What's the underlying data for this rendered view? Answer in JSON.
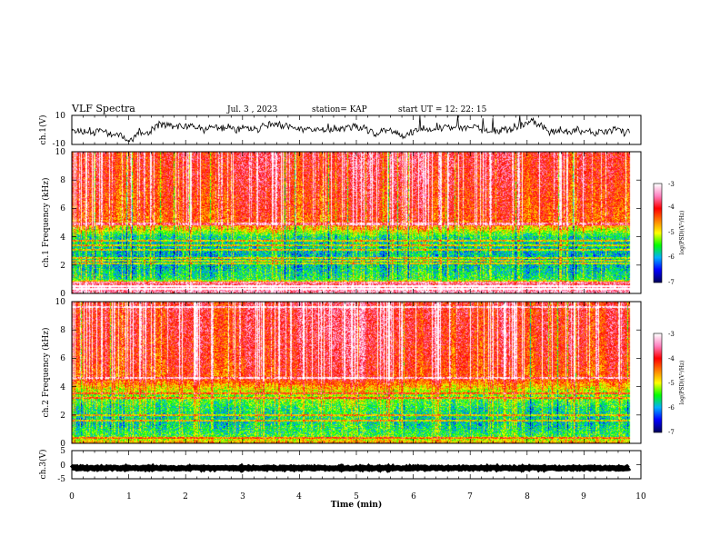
{
  "header": {
    "title": "VLF Spectra",
    "date": "Jul. 3 , 2023",
    "station": "station= KAP",
    "start": "start UT = 12: 22: 15"
  },
  "chart_data": [
    {
      "type": "line",
      "panel": "waveform-ch1",
      "ylabel": "ch.1(V)",
      "xlim": [
        0,
        10
      ],
      "ylim": [
        -10,
        10
      ],
      "yticks": [
        "10",
        "-10"
      ],
      "x_label_shown": false,
      "data_xmax": 9.8,
      "trace": {
        "mean": 0.5,
        "amplitude": 4.5,
        "clip": [
          -8,
          10
        ],
        "color": "#000000"
      }
    },
    {
      "type": "heatmap",
      "panel": "spectrogram-ch1",
      "ylabel": "ch.1  Frequency (kHz)",
      "xlim": [
        0,
        10
      ],
      "ylim": [
        0,
        10
      ],
      "yticks": [
        "0",
        "2",
        "4",
        "6",
        "8",
        "10"
      ],
      "data_xmax": 9.8,
      "colorscale": [
        "#000060",
        "#0000ff",
        "#00b0ff",
        "#00ff00",
        "#ffff00",
        "#ff8000",
        "#ff0000",
        "#ff80c0",
        "#ffffff"
      ],
      "colorbar": {
        "ticks": [
          "-3",
          "-4",
          "-5",
          "-6",
          "-7"
        ],
        "range": [
          -7,
          -3
        ],
        "label": "log(PSD)(V²/Hz)"
      },
      "level_profile": [
        {
          "f_khz": 0.0,
          "level": -3.4
        },
        {
          "f_khz": 0.6,
          "level": -3.5
        },
        {
          "f_khz": 1.0,
          "level": -5.6
        },
        {
          "f_khz": 2.0,
          "level": -5.9
        },
        {
          "f_khz": 3.0,
          "level": -5.9
        },
        {
          "f_khz": 4.0,
          "level": -5.7
        },
        {
          "f_khz": 5.0,
          "level": -4.3
        },
        {
          "f_khz": 6.0,
          "level": -4.2
        },
        {
          "f_khz": 8.0,
          "level": -4.0
        },
        {
          "f_khz": 10.0,
          "level": -3.9
        }
      ],
      "lines_khz": [
        0.3,
        0.5,
        0.75,
        2.1,
        2.3,
        2.5,
        3.1,
        3.4,
        3.7,
        4.9
      ]
    },
    {
      "type": "heatmap",
      "panel": "spectrogram-ch2",
      "ylabel": "ch.2  Frequency (kHz)",
      "xlim": [
        0,
        10
      ],
      "ylim": [
        0,
        10
      ],
      "yticks": [
        "0",
        "2",
        "4",
        "6",
        "8",
        "10"
      ],
      "data_xmax": 9.8,
      "colorscale": [
        "#000060",
        "#0000ff",
        "#00b0ff",
        "#00ff00",
        "#ffff00",
        "#ff8000",
        "#ff0000",
        "#ff80c0",
        "#ffffff"
      ],
      "colorbar": {
        "ticks": [
          "-3",
          "-4",
          "-5",
          "-6",
          "-7"
        ],
        "range": [
          -7,
          -3
        ],
        "label": "log(PSD)(V²/Hz)"
      },
      "level_profile": [
        {
          "f_khz": 0.0,
          "level": -4.6
        },
        {
          "f_khz": 0.5,
          "level": -5.5
        },
        {
          "f_khz": 1.5,
          "level": -5.8
        },
        {
          "f_khz": 2.5,
          "level": -5.6
        },
        {
          "f_khz": 3.5,
          "level": -5.2
        },
        {
          "f_khz": 4.5,
          "level": -4.2
        },
        {
          "f_khz": 6.0,
          "level": -4.0
        },
        {
          "f_khz": 8.0,
          "level": -3.9
        },
        {
          "f_khz": 10.0,
          "level": -3.9
        }
      ],
      "lines_khz": [
        0.4,
        1.6,
        2.0,
        3.2,
        3.5,
        4.6,
        9.6
      ]
    },
    {
      "type": "line",
      "panel": "waveform-ch3",
      "ylabel": "ch.3(V)",
      "xlim": [
        0,
        10
      ],
      "ylim": [
        -5,
        5
      ],
      "yticks": [
        "5",
        "0",
        "-5"
      ],
      "xlabel": "Time  (min)",
      "xticks": [
        "0",
        "1",
        "2",
        "3",
        "4",
        "5",
        "6",
        "7",
        "8",
        "9",
        "10"
      ],
      "data_xmax": 9.8,
      "trace": {
        "mean": -1.2,
        "amplitude": 0.5,
        "clip": [
          -5,
          5
        ],
        "color": "#000000"
      }
    }
  ]
}
